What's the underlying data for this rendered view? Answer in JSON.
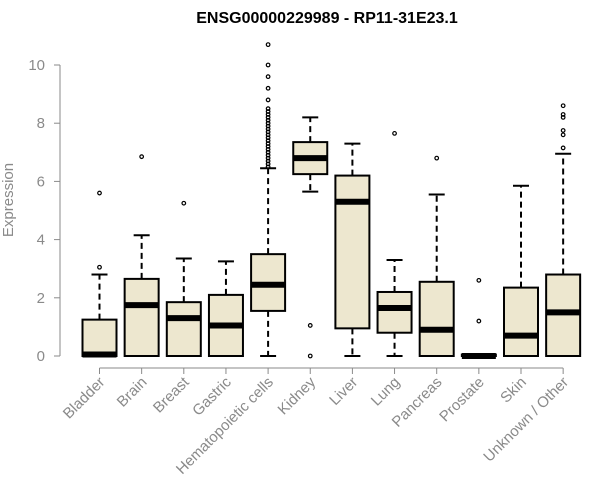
{
  "chart_data": {
    "type": "boxplot",
    "title": "ENSG00000229989 - RP11-31E23.1",
    "ylabel": "Expression",
    "xlabel": "",
    "ylim": [
      0,
      10.7
    ],
    "yticks": [
      0,
      2,
      4,
      6,
      8,
      10
    ],
    "box_fill": "#ede7cf",
    "categories": [
      "Bladder",
      "Brain",
      "Breast",
      "Gastric",
      "Hematopoietic cells",
      "Kidney",
      "Liver",
      "Lung",
      "Pancreas",
      "Prostate",
      "Skin",
      "Unknown / Other"
    ],
    "boxes": [
      {
        "name": "Bladder",
        "min": 0,
        "q1": 0,
        "median": 0.05,
        "q3": 1.25,
        "max": 2.8,
        "outliers": [
          3.05,
          5.6
        ]
      },
      {
        "name": "Brain",
        "min": 0,
        "q1": 0,
        "median": 1.75,
        "q3": 2.65,
        "max": 4.15,
        "outliers": [
          6.85
        ]
      },
      {
        "name": "Breast",
        "min": 0,
        "q1": 0,
        "median": 1.3,
        "q3": 1.85,
        "max": 3.35,
        "outliers": [
          5.25
        ]
      },
      {
        "name": "Gastric",
        "min": 0,
        "q1": 0,
        "median": 1.05,
        "q3": 2.1,
        "max": 3.25,
        "outliers": []
      },
      {
        "name": "Hematopoietic cells",
        "min": 0,
        "q1": 1.55,
        "median": 2.45,
        "q3": 3.5,
        "max": 6.45,
        "outliers": [
          6.5,
          6.6,
          6.7,
          6.8,
          6.9,
          7.0,
          7.1,
          7.2,
          7.3,
          7.4,
          7.5,
          7.6,
          7.7,
          7.8,
          7.9,
          8.0,
          8.1,
          8.2,
          8.3,
          8.4,
          8.5,
          8.8,
          9.2,
          9.6,
          10.0,
          10.7
        ]
      },
      {
        "name": "Kidney",
        "min": 5.65,
        "q1": 6.25,
        "median": 6.8,
        "q3": 7.35,
        "max": 8.2,
        "outliers": [
          1.05,
          0.0
        ]
      },
      {
        "name": "Liver",
        "min": 0,
        "q1": 0.95,
        "median": 5.3,
        "q3": 6.2,
        "max": 7.3,
        "outliers": []
      },
      {
        "name": "Lung",
        "min": 0,
        "q1": 0.8,
        "median": 1.65,
        "q3": 2.2,
        "max": 3.3,
        "outliers": [
          7.65
        ]
      },
      {
        "name": "Pancreas",
        "min": 0,
        "q1": 0,
        "median": 0.9,
        "q3": 2.55,
        "max": 5.55,
        "outliers": [
          6.8
        ]
      },
      {
        "name": "Prostate",
        "min": 0,
        "q1": 0,
        "median": 0,
        "q3": 0.05,
        "max": 0.05,
        "outliers": [
          1.2,
          2.6
        ]
      },
      {
        "name": "Skin",
        "min": 0,
        "q1": 0,
        "median": 0.7,
        "q3": 2.35,
        "max": 5.85,
        "outliers": []
      },
      {
        "name": "Unknown / Other",
        "min": 0,
        "q1": 0,
        "median": 1.5,
        "q3": 2.8,
        "max": 6.95,
        "outliers": [
          7.15,
          7.6,
          7.75,
          8.2,
          8.3,
          8.6
        ]
      }
    ]
  }
}
